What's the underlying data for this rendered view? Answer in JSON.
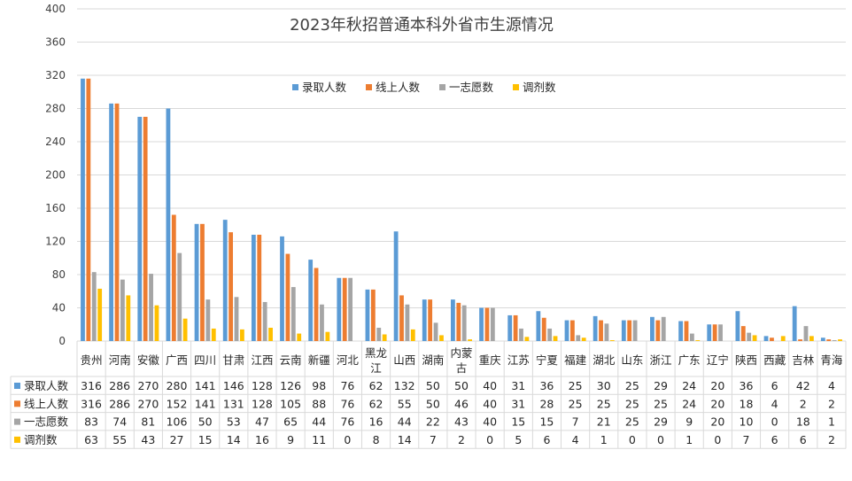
{
  "chart_data": {
    "type": "bar",
    "title": "2023年秋招普通本科外省市生源情况",
    "categories": [
      "贵州",
      "河南",
      "安徽",
      "广西",
      "四川",
      "甘肃",
      "江西",
      "云南",
      "新疆",
      "河北",
      "黑龙江",
      "山西",
      "湖南",
      "内蒙古",
      "重庆",
      "江苏",
      "宁夏",
      "福建",
      "湖北",
      "山东",
      "浙江",
      "广东",
      "辽宁",
      "陕西",
      "西藏",
      "吉林",
      "青海"
    ],
    "series": [
      {
        "name": "录取人数",
        "color": "#5B9BD5",
        "values": [
          316,
          286,
          270,
          280,
          141,
          146,
          128,
          126,
          98,
          76,
          62,
          132,
          50,
          50,
          40,
          31,
          36,
          25,
          30,
          25,
          29,
          24,
          20,
          36,
          6,
          42,
          4
        ]
      },
      {
        "name": "线上人数",
        "color": "#ED7D31",
        "values": [
          316,
          286,
          270,
          152,
          141,
          131,
          128,
          105,
          88,
          76,
          62,
          55,
          50,
          46,
          40,
          31,
          28,
          25,
          25,
          25,
          25,
          24,
          20,
          18,
          4,
          2,
          2
        ]
      },
      {
        "name": "一志愿数",
        "color": "#A5A5A5",
        "values": [
          83,
          74,
          81,
          106,
          50,
          53,
          47,
          65,
          44,
          76,
          16,
          44,
          22,
          43,
          40,
          15,
          15,
          7,
          21,
          25,
          29,
          9,
          20,
          10,
          0,
          18,
          1
        ]
      },
      {
        "name": "调剂数",
        "color": "#FFC000",
        "values": [
          63,
          55,
          43,
          27,
          15,
          14,
          16,
          9,
          11,
          0,
          8,
          14,
          7,
          2,
          0,
          5,
          6,
          4,
          1,
          0,
          0,
          1,
          0,
          7,
          6,
          6,
          2
        ]
      }
    ],
    "ylim": [
      0,
      400
    ],
    "yticks": [
      0,
      40,
      80,
      120,
      160,
      200,
      240,
      280,
      320,
      360,
      400
    ],
    "grid": true,
    "legend_position": "top"
  }
}
